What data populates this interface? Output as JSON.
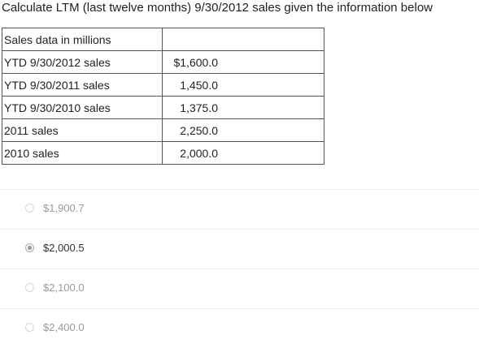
{
  "question": "Calculate LTM (last twelve months) 9/30/2012 sales given the information below",
  "table": {
    "header": [
      "Sales data in millions",
      ""
    ],
    "rows": [
      {
        "label": "YTD 9/30/2012 sales",
        "value": "$1,600.0"
      },
      {
        "label": "YTD 9/30/2011 sales",
        "value": "1,450.0"
      },
      {
        "label": "YTD 9/30/2010 sales",
        "value": "1,375.0"
      },
      {
        "label": "2011 sales",
        "value": "2,250.0"
      },
      {
        "label": "2010 sales",
        "value": "2,000.0"
      }
    ]
  },
  "options": [
    {
      "label": "$1,900.7",
      "selected": false
    },
    {
      "label": "$2,000.5",
      "selected": true
    },
    {
      "label": "$2,100.0",
      "selected": false
    },
    {
      "label": "$2,400.0",
      "selected": false
    }
  ]
}
